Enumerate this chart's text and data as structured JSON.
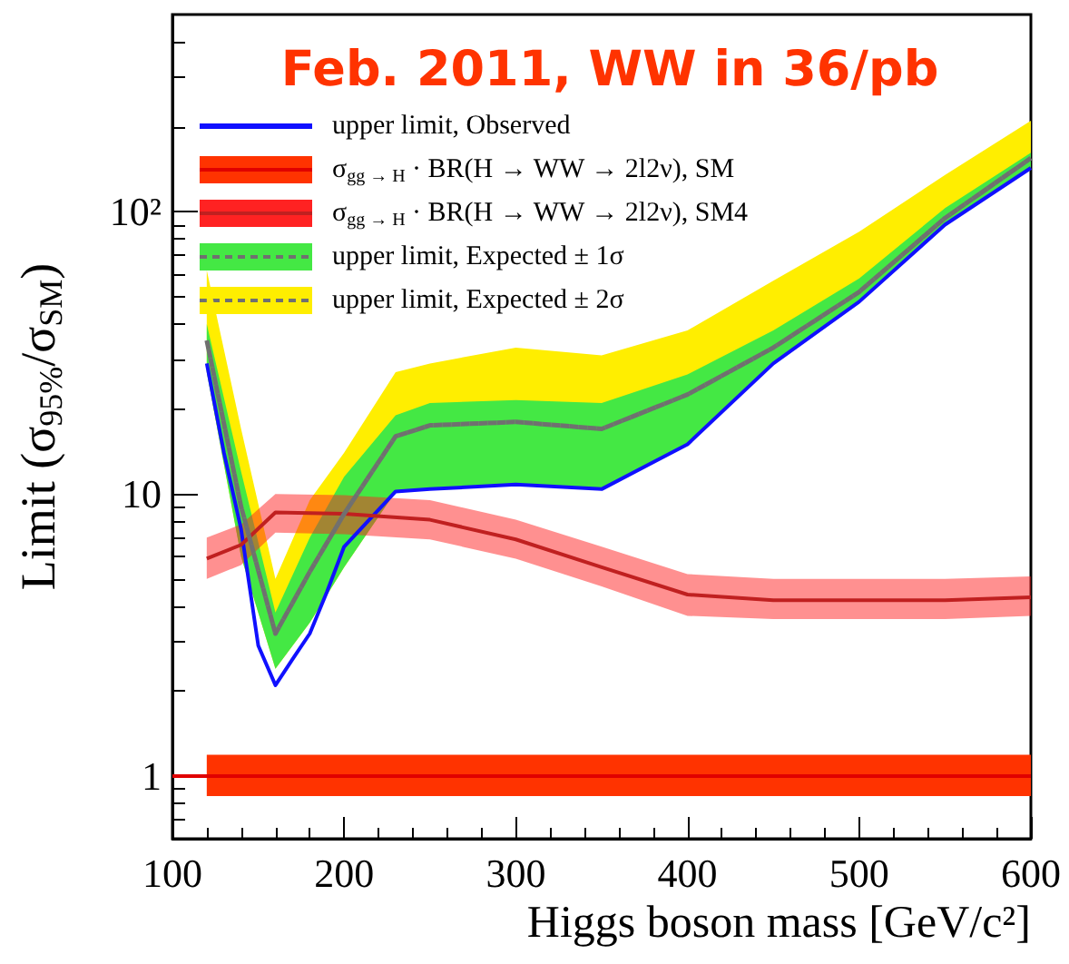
{
  "chart_data": {
    "type": "line",
    "title": "Feb. 2011, WW in 36/pb",
    "xlabel": "Higgs boson mass [GeV/c²]",
    "ylabel": "Limit (σ$_{95%}$/σ$_{SM}$)",
    "xlim": [
      100,
      600
    ],
    "xticks": [
      100,
      200,
      300,
      400,
      500,
      600
    ],
    "ylim": [
      0.6,
      500
    ],
    "yticks": [
      1,
      10,
      {
        "value": 100,
        "label": "10²"
      }
    ],
    "log": "y",
    "grid": false,
    "legend": "top left",
    "marker": "none",
    "series": [
      {
        "name": "upper limit, Observed",
        "color": "#1010ff",
        "line_style": "solid",
        "x": [
          120,
          130,
          140,
          150,
          160,
          170,
          180,
          190,
          200,
          230,
          250,
          300,
          350,
          400,
          450,
          500,
          550,
          600
        ],
        "values": [
          29,
          14,
          7.5,
          2.9,
          2.1,
          2.6,
          3.2,
          4.5,
          6.5,
          10.2,
          10.4,
          10.8,
          10.4,
          15,
          29,
          48,
          90,
          143
        ]
      },
      {
        "name": "σ$_{gg → H}$ · BR(H → WW → 2l2ν), SM",
        "color": "#e00000",
        "line_style": "solid",
        "x": [
          100,
          120,
          600
        ],
        "values": [
          1,
          1,
          1
        ],
        "lower": [
          null,
          0.85,
          0.85
        ],
        "upper": [
          null,
          1.19,
          1.19
        ]
      },
      {
        "name": "σ$_{gg → H}$ · BR(H → WW → 2l2ν), SM4",
        "color": "#c02020",
        "line_style": "solid",
        "x": [
          120,
          140,
          160,
          200,
          250,
          300,
          350,
          400,
          450,
          500,
          550,
          600
        ],
        "values": [
          5.9,
          6.6,
          8.6,
          8.5,
          8.1,
          6.9,
          5.5,
          4.4,
          4.2,
          4.2,
          4.2,
          4.3
        ],
        "lower": [
          5.0,
          5.6,
          7.3,
          7.2,
          6.9,
          5.9,
          4.7,
          3.7,
          3.6,
          3.6,
          3.6,
          3.7
        ],
        "upper": [
          7.0,
          7.8,
          10.0,
          9.9,
          9.5,
          8.1,
          6.5,
          5.2,
          5.0,
          5.0,
          5.0,
          5.1
        ]
      },
      {
        "name": "upper limit, Expected ± 1σ",
        "color": "#707070",
        "line_style": "dashed",
        "x": [
          120,
          140,
          160,
          180,
          200,
          230,
          250,
          300,
          350,
          400,
          450,
          500,
          550,
          600
        ],
        "values": [
          35,
          9,
          3.2,
          5.3,
          8.5,
          16,
          17.5,
          18,
          17,
          22.5,
          33,
          52,
          95,
          155
        ],
        "lower": [
          27,
          6,
          2.4,
          3.5,
          5.5,
          10.2,
          10.4,
          10.8,
          10.4,
          15,
          29,
          48,
          90,
          143
        ],
        "upper": [
          40,
          12,
          3.8,
          7,
          11.5,
          19,
          21,
          21.5,
          21,
          26.5,
          38,
          58,
          103,
          162
        ]
      },
      {
        "name": "upper limit, Expected ± 2σ",
        "color": "#707070",
        "line_style": "dashed",
        "x": [
          120,
          140,
          160,
          180,
          200,
          230,
          250,
          300,
          350,
          400,
          450,
          500,
          550,
          600
        ],
        "values": [
          35,
          9,
          3.2,
          5.3,
          8.5,
          16,
          17.5,
          18,
          17,
          22.5,
          33,
          52,
          95,
          155
        ],
        "lower": [
          27,
          6,
          2.4,
          3.5,
          5.5,
          10.2,
          10.4,
          10.8,
          10.4,
          15,
          29,
          48,
          90,
          143
        ],
        "upper": [
          62,
          17,
          5,
          9.5,
          14,
          27,
          29,
          33,
          31,
          38,
          57,
          85,
          135,
          210
        ]
      }
    ]
  }
}
